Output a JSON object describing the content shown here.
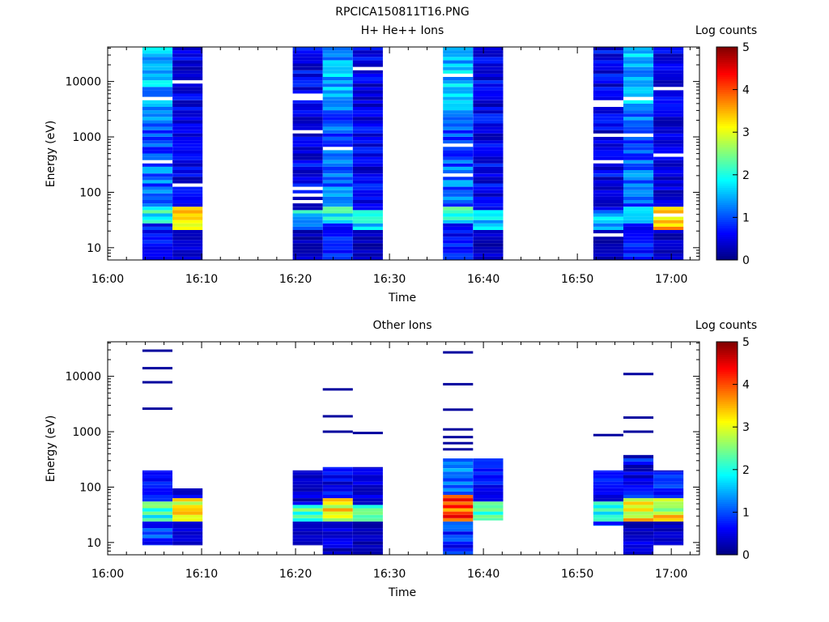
{
  "figure": {
    "title": "RPCICA150811T16.PNG"
  },
  "colorbar": {
    "label": "Log counts",
    "ticks": [
      "0",
      "1",
      "2",
      "3",
      "4",
      "5"
    ],
    "range": [
      0,
      5
    ],
    "colormap": [
      "#00007f",
      "#0000ff",
      "#007fff",
      "#00ffff",
      "#7fff7f",
      "#ffff00",
      "#ff7f00",
      "#ff0000",
      "#7f0000"
    ]
  },
  "chart_data": [
    {
      "type": "heatmap",
      "title": "H+ He++ Ions",
      "xlabel": "Time",
      "ylabel": "Energy (eV)",
      "x_ticks": [
        "16:00",
        "16:10",
        "16:20",
        "16:30",
        "16:40",
        "16:50",
        "17:00"
      ],
      "xlim_min": [
        0,
        63
      ],
      "y_ticks": [
        "10",
        "100",
        "1000",
        "10000"
      ],
      "yscale": "log",
      "ylim_ev": [
        6,
        42000
      ],
      "columns": [
        {
          "t0": 3.7,
          "t1": 6.9,
          "emin": 6,
          "emax": 42000,
          "profile": "hplus_a"
        },
        {
          "t0": 6.9,
          "t1": 10.1,
          "emin": 6,
          "emax": 42000,
          "profile": "hplus_b_peak"
        },
        {
          "t0": 19.7,
          "t1": 22.9,
          "emin": 6,
          "emax": 42000,
          "profile": "hplus_c"
        },
        {
          "t0": 22.9,
          "t1": 26.1,
          "emin": 6,
          "emax": 42000,
          "profile": "hplus_a"
        },
        {
          "t0": 26.1,
          "t1": 29.3,
          "emin": 6,
          "emax": 42000,
          "profile": "hplus_c"
        },
        {
          "t0": 35.7,
          "t1": 38.9,
          "emin": 6,
          "emax": 42000,
          "profile": "hplus_a"
        },
        {
          "t0": 38.9,
          "t1": 42.1,
          "emin": 6,
          "emax": 42000,
          "profile": "hplus_c"
        },
        {
          "t0": 51.7,
          "t1": 54.9,
          "emin": 6,
          "emax": 42000,
          "profile": "hplus_c"
        },
        {
          "t0": 54.9,
          "t1": 58.1,
          "emin": 6,
          "emax": 42000,
          "profile": "hplus_a"
        },
        {
          "t0": 58.1,
          "t1": 61.3,
          "emin": 6,
          "emax": 42000,
          "profile": "hplus_b_peak"
        }
      ]
    },
    {
      "type": "heatmap",
      "title": "Other Ions",
      "xlabel": "Time",
      "ylabel": "Energy (eV)",
      "x_ticks": [
        "16:00",
        "16:10",
        "16:20",
        "16:30",
        "16:40",
        "16:50",
        "17:00"
      ],
      "xlim_min": [
        0,
        63
      ],
      "y_ticks": [
        "10",
        "100",
        "1000",
        "10000"
      ],
      "yscale": "log",
      "ylim_ev": [
        6,
        42000
      ],
      "columns": [
        {
          "t0": 3.7,
          "t1": 6.9,
          "emin": 9,
          "emax": 200,
          "profile": "other_mid",
          "lines": [
            2600,
            7800,
            14000,
            29000
          ]
        },
        {
          "t0": 6.9,
          "t1": 10.1,
          "emin": 9,
          "emax": 95,
          "profile": "other_peak",
          "lines": []
        },
        {
          "t0": 19.7,
          "t1": 22.9,
          "emin": 9,
          "emax": 200,
          "profile": "other_low",
          "lines": []
        },
        {
          "t0": 22.9,
          "t1": 26.1,
          "emin": 6,
          "emax": 230,
          "profile": "other_peak",
          "lines": [
            1000,
            1900,
            5800
          ]
        },
        {
          "t0": 26.1,
          "t1": 29.3,
          "emin": 6,
          "emax": 230,
          "profile": "other_low",
          "lines": [
            950
          ]
        },
        {
          "t0": 35.7,
          "t1": 38.9,
          "emin": 6,
          "emax": 330,
          "profile": "other_hot",
          "lines": [
            480,
            620,
            800,
            1100,
            2500,
            7200,
            27000
          ]
        },
        {
          "t0": 38.9,
          "t1": 42.1,
          "emin": 25,
          "emax": 330,
          "profile": "other_mid",
          "lines": []
        },
        {
          "t0": 51.7,
          "t1": 54.9,
          "emin": 20,
          "emax": 200,
          "profile": "other_mid",
          "lines": [
            870
          ]
        },
        {
          "t0": 54.9,
          "t1": 58.1,
          "emin": 6,
          "emax": 380,
          "profile": "other_peak",
          "lines": [
            1000,
            1800,
            11000
          ]
        },
        {
          "t0": 58.1,
          "t1": 61.3,
          "emin": 9,
          "emax": 200,
          "profile": "other_peak",
          "lines": []
        }
      ]
    }
  ]
}
